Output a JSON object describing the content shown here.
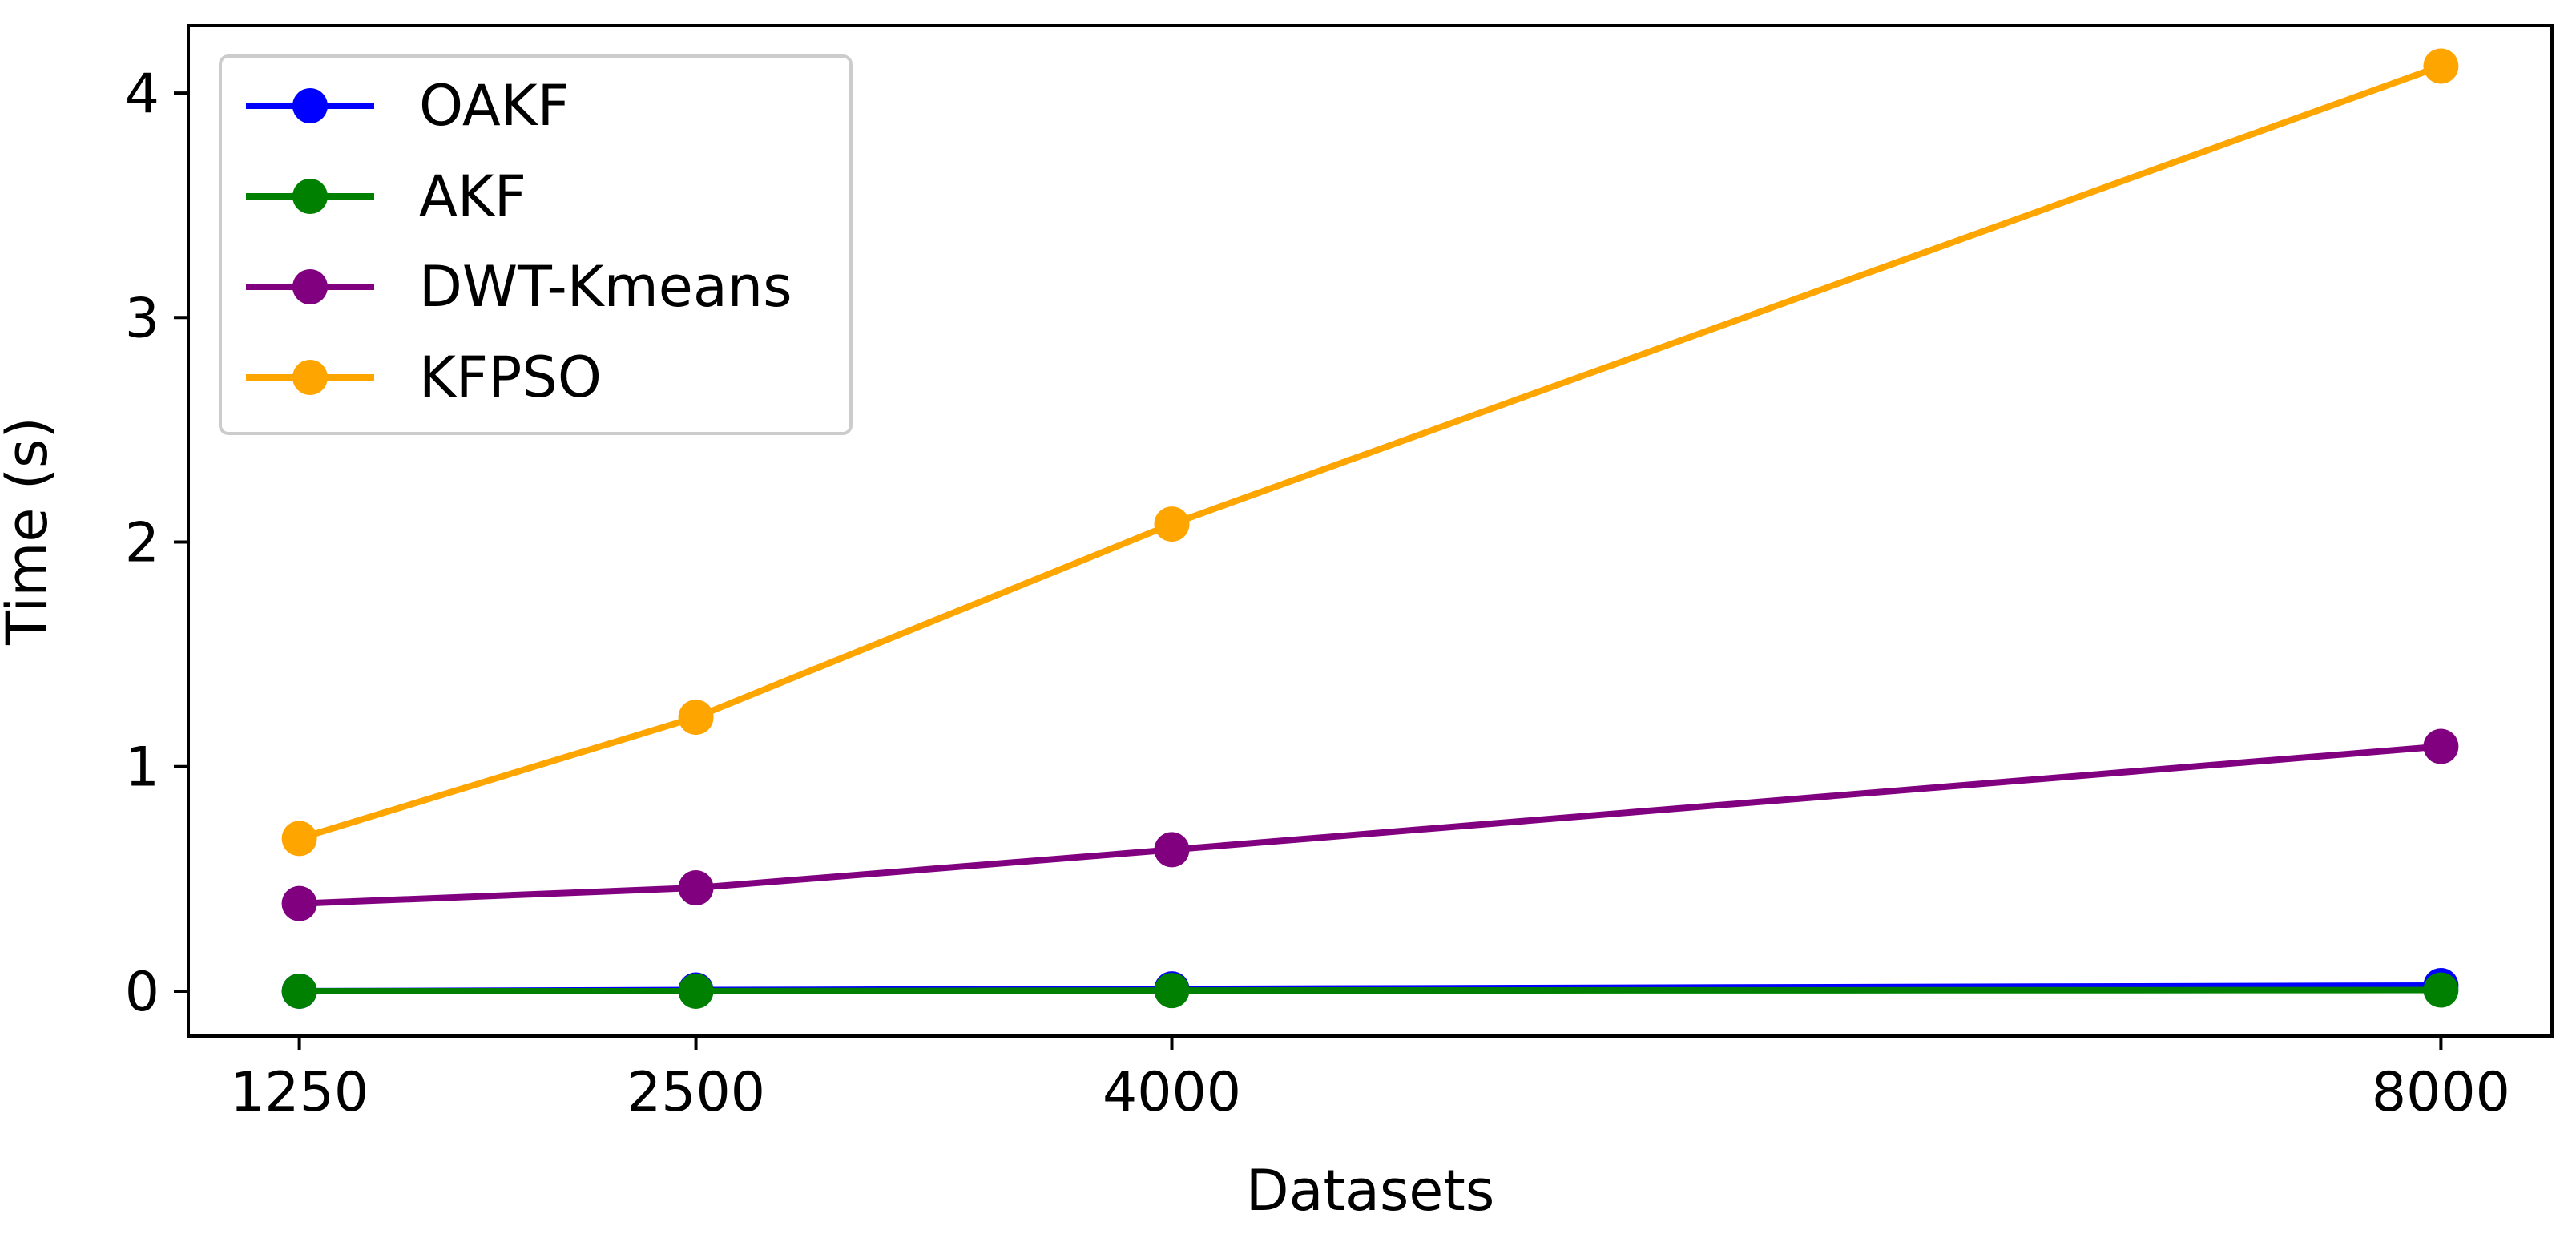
{
  "chart_data": {
    "type": "line",
    "title": "",
    "xlabel": "Datasets",
    "ylabel": "Time (s)",
    "x": [
      1250,
      2500,
      4000,
      8000
    ],
    "x_tick_labels": [
      "1250",
      "2500",
      "4000",
      "8000"
    ],
    "yticks": [
      0,
      1,
      2,
      3,
      4
    ],
    "y_tick_labels": [
      "0",
      "1",
      "2",
      "3",
      "4"
    ],
    "xlim": [
      900,
      8350
    ],
    "ylim": [
      -0.2,
      4.3
    ],
    "grid": false,
    "legend_position": "top-left",
    "series": [
      {
        "name": "OAKF",
        "color": "#0000ff",
        "values": [
          0.0,
          0.005,
          0.01,
          0.025
        ]
      },
      {
        "name": "AKF",
        "color": "#008000",
        "values": [
          0.0,
          0.0,
          0.003,
          0.005
        ]
      },
      {
        "name": "DWT-Kmeans",
        "color": "#800080",
        "values": [
          0.39,
          0.46,
          0.63,
          1.09
        ]
      },
      {
        "name": "KFPSO",
        "color": "#ffa500",
        "values": [
          0.68,
          1.22,
          2.08,
          4.12
        ]
      }
    ]
  }
}
